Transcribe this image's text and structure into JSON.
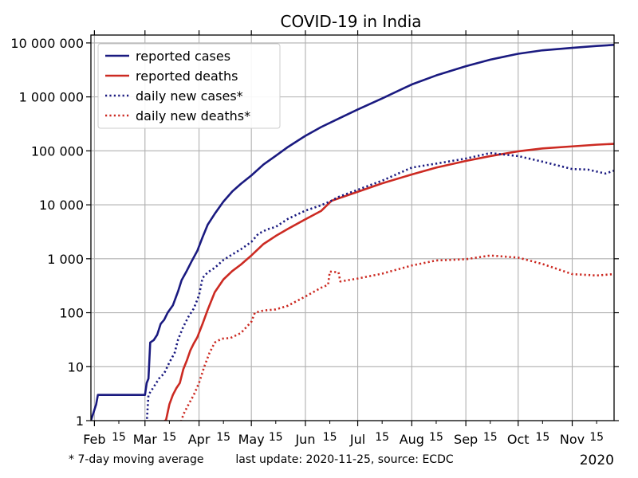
{
  "chart_data": {
    "type": "line",
    "title": "COVID-19 in India",
    "y_scale": "log",
    "ylim": [
      1,
      14000000
    ],
    "xlim": [
      "2020-01-30",
      "2020-11-25"
    ],
    "grid": true,
    "legend_position": "top-left",
    "y_ticks": [
      {
        "value": 1,
        "label": "1"
      },
      {
        "value": 10,
        "label": "10"
      },
      {
        "value": 100,
        "label": "100"
      },
      {
        "value": 1000,
        "label": "1 000"
      },
      {
        "value": 10000,
        "label": "10 000"
      },
      {
        "value": 100000,
        "label": "100 000"
      },
      {
        "value": 1000000,
        "label": "1 000 000"
      },
      {
        "value": 10000000,
        "label": "10 000 000"
      }
    ],
    "x_month_ticks": [
      {
        "date": "2020-02-01",
        "label": "Feb"
      },
      {
        "date": "2020-03-01",
        "label": "Mar"
      },
      {
        "date": "2020-04-01",
        "label": "Apr"
      },
      {
        "date": "2020-05-01",
        "label": "May"
      },
      {
        "date": "2020-06-01",
        "label": "Jun"
      },
      {
        "date": "2020-07-01",
        "label": "Jul"
      },
      {
        "date": "2020-08-01",
        "label": "Aug"
      },
      {
        "date": "2020-09-01",
        "label": "Sep"
      },
      {
        "date": "2020-10-01",
        "label": "Oct"
      },
      {
        "date": "2020-11-01",
        "label": "Nov"
      }
    ],
    "x_mid_ticks": [
      {
        "date": "2020-02-15",
        "label": "15"
      },
      {
        "date": "2020-03-15",
        "label": "15"
      },
      {
        "date": "2020-04-15",
        "label": "15"
      },
      {
        "date": "2020-05-15",
        "label": "15"
      },
      {
        "date": "2020-06-15",
        "label": "15"
      },
      {
        "date": "2020-07-15",
        "label": "15"
      },
      {
        "date": "2020-08-15",
        "label": "15"
      },
      {
        "date": "2020-09-15",
        "label": "15"
      },
      {
        "date": "2020-10-15",
        "label": "15"
      },
      {
        "date": "2020-11-15",
        "label": "15"
      }
    ],
    "year_label": "2020",
    "series": [
      {
        "name": "reported cases",
        "color": "#1a1a80",
        "style": "solid",
        "points": [
          [
            "2020-01-30",
            1
          ],
          [
            "2020-02-02",
            2
          ],
          [
            "2020-02-03",
            3
          ],
          [
            "2020-03-01",
            3
          ],
          [
            "2020-03-02",
            5
          ],
          [
            "2020-03-03",
            6
          ],
          [
            "2020-03-04",
            28
          ],
          [
            "2020-03-06",
            31
          ],
          [
            "2020-03-08",
            39
          ],
          [
            "2020-03-10",
            62
          ],
          [
            "2020-03-12",
            74
          ],
          [
            "2020-03-14",
            100
          ],
          [
            "2020-03-17",
            137
          ],
          [
            "2020-03-20",
            250
          ],
          [
            "2020-03-22",
            400
          ],
          [
            "2020-03-25",
            600
          ],
          [
            "2020-03-28",
            930
          ],
          [
            "2020-03-31",
            1400
          ],
          [
            "2020-04-03",
            2500
          ],
          [
            "2020-04-06",
            4300
          ],
          [
            "2020-04-10",
            6800
          ],
          [
            "2020-04-15",
            11500
          ],
          [
            "2020-04-20",
            17600
          ],
          [
            "2020-04-25",
            24500
          ],
          [
            "2020-05-01",
            35000
          ],
          [
            "2020-05-08",
            56000
          ],
          [
            "2020-05-15",
            81000
          ],
          [
            "2020-05-22",
            118000
          ],
          [
            "2020-06-01",
            190000
          ],
          [
            "2020-06-10",
            276000
          ],
          [
            "2020-06-20",
            395000
          ],
          [
            "2020-07-01",
            585000
          ],
          [
            "2020-07-15",
            936000
          ],
          [
            "2020-08-01",
            1700000
          ],
          [
            "2020-08-15",
            2500000
          ],
          [
            "2020-09-01",
            3700000
          ],
          [
            "2020-09-15",
            4900000
          ],
          [
            "2020-10-01",
            6300000
          ],
          [
            "2020-10-15",
            7300000
          ],
          [
            "2020-11-01",
            8100000
          ],
          [
            "2020-11-15",
            8800000
          ],
          [
            "2020-11-25",
            9200000
          ]
        ]
      },
      {
        "name": "reported deaths",
        "color": "#cc2a22",
        "style": "solid",
        "points": [
          [
            "2020-03-12",
            1
          ],
          [
            "2020-03-13",
            1
          ],
          [
            "2020-03-15",
            2
          ],
          [
            "2020-03-17",
            3
          ],
          [
            "2020-03-19",
            4
          ],
          [
            "2020-03-21",
            5
          ],
          [
            "2020-03-23",
            9
          ],
          [
            "2020-03-25",
            13
          ],
          [
            "2020-03-27",
            20
          ],
          [
            "2020-03-29",
            27
          ],
          [
            "2020-03-31",
            35
          ],
          [
            "2020-04-03",
            62
          ],
          [
            "2020-04-06",
            114
          ],
          [
            "2020-04-10",
            239
          ],
          [
            "2020-04-15",
            414
          ],
          [
            "2020-04-20",
            590
          ],
          [
            "2020-04-25",
            780
          ],
          [
            "2020-05-01",
            1150
          ],
          [
            "2020-05-08",
            1880
          ],
          [
            "2020-05-15",
            2650
          ],
          [
            "2020-05-22",
            3580
          ],
          [
            "2020-06-01",
            5400
          ],
          [
            "2020-06-10",
            7700
          ],
          [
            "2020-06-16",
            11900
          ],
          [
            "2020-07-01",
            17400
          ],
          [
            "2020-07-15",
            25000
          ],
          [
            "2020-08-01",
            36500
          ],
          [
            "2020-08-15",
            49000
          ],
          [
            "2020-09-01",
            65000
          ],
          [
            "2020-09-15",
            80000
          ],
          [
            "2020-10-01",
            98000
          ],
          [
            "2020-10-15",
            111000
          ],
          [
            "2020-11-01",
            121000
          ],
          [
            "2020-11-15",
            130000
          ],
          [
            "2020-11-25",
            135000
          ]
        ]
      },
      {
        "name": "daily new cases*",
        "color": "#1a1a80",
        "style": "dotted",
        "points": [
          [
            "2020-03-02",
            0.9
          ],
          [
            "2020-03-03",
            3
          ],
          [
            "2020-03-06",
            4.2
          ],
          [
            "2020-03-09",
            6
          ],
          [
            "2020-03-12",
            7.5
          ],
          [
            "2020-03-15",
            12
          ],
          [
            "2020-03-18",
            18
          ],
          [
            "2020-03-20",
            32
          ],
          [
            "2020-03-23",
            55
          ],
          [
            "2020-03-26",
            85
          ],
          [
            "2020-03-29",
            120
          ],
          [
            "2020-04-01",
            210
          ],
          [
            "2020-04-03",
            440
          ],
          [
            "2020-04-06",
            560
          ],
          [
            "2020-04-10",
            680
          ],
          [
            "2020-04-15",
            950
          ],
          [
            "2020-04-20",
            1200
          ],
          [
            "2020-04-25",
            1500
          ],
          [
            "2020-05-01",
            2050
          ],
          [
            "2020-05-05",
            2900
          ],
          [
            "2020-05-10",
            3500
          ],
          [
            "2020-05-15",
            3900
          ],
          [
            "2020-05-22",
            5500
          ],
          [
            "2020-06-01",
            7800
          ],
          [
            "2020-06-10",
            9800
          ],
          [
            "2020-06-15",
            11500
          ],
          [
            "2020-06-20",
            14000
          ],
          [
            "2020-07-01",
            19000
          ],
          [
            "2020-07-15",
            28000
          ],
          [
            "2020-08-01",
            49000
          ],
          [
            "2020-08-15",
            58000
          ],
          [
            "2020-09-01",
            72000
          ],
          [
            "2020-09-15",
            91000
          ],
          [
            "2020-10-01",
            80000
          ],
          [
            "2020-10-15",
            63000
          ],
          [
            "2020-11-01",
            46000
          ],
          [
            "2020-11-10",
            45000
          ],
          [
            "2020-11-20",
            38000
          ],
          [
            "2020-11-25",
            43000
          ]
        ]
      },
      {
        "name": "daily new deaths*",
        "color": "#cc2a22",
        "style": "dotted",
        "points": [
          [
            "2020-03-21",
            0.8
          ],
          [
            "2020-03-23",
            1.3
          ],
          [
            "2020-03-26",
            2
          ],
          [
            "2020-03-29",
            3
          ],
          [
            "2020-04-01",
            5
          ],
          [
            "2020-04-04",
            10
          ],
          [
            "2020-04-07",
            18
          ],
          [
            "2020-04-10",
            28
          ],
          [
            "2020-04-14",
            33
          ],
          [
            "2020-04-19",
            34
          ],
          [
            "2020-04-25",
            42
          ],
          [
            "2020-05-01",
            68
          ],
          [
            "2020-05-03",
            100
          ],
          [
            "2020-05-08",
            110
          ],
          [
            "2020-05-15",
            115
          ],
          [
            "2020-05-22",
            135
          ],
          [
            "2020-06-01",
            200
          ],
          [
            "2020-06-10",
            290
          ],
          [
            "2020-06-14",
            330
          ],
          [
            "2020-06-15",
            580
          ],
          [
            "2020-06-20",
            560
          ],
          [
            "2020-06-21",
            380
          ],
          [
            "2020-07-01",
            430
          ],
          [
            "2020-07-15",
            530
          ],
          [
            "2020-08-01",
            750
          ],
          [
            "2020-08-15",
            930
          ],
          [
            "2020-09-01",
            980
          ],
          [
            "2020-09-15",
            1150
          ],
          [
            "2020-10-01",
            1050
          ],
          [
            "2020-10-15",
            800
          ],
          [
            "2020-11-01",
            520
          ],
          [
            "2020-11-15",
            490
          ],
          [
            "2020-11-25",
            520
          ]
        ]
      }
    ],
    "footnote_left": "* 7-day moving average",
    "footnote_center": "last update: 2020-11-25, source: ECDC"
  }
}
